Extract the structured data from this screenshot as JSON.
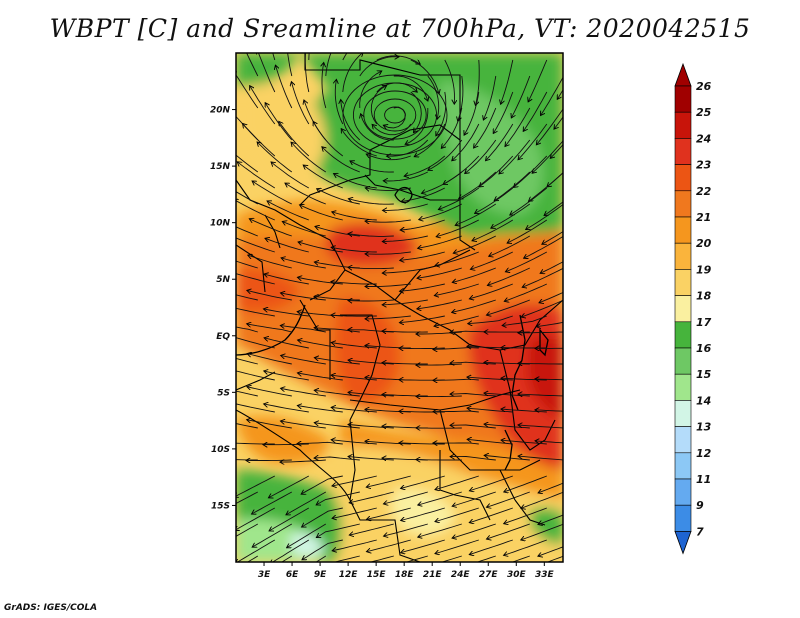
{
  "title": "WBPT [C] and Sreamline at 700hPa, VT: 2020042515",
  "footer": "GrADS: IGES/COLA",
  "chart_data": {
    "type": "heatmap",
    "title": "WBPT [C] and Sreamline at 700hPa, VT: 2020042515",
    "x_ticks": [
      "3E",
      "6E",
      "9E",
      "12E",
      "15E",
      "18E",
      "21E",
      "24E",
      "27E",
      "30E",
      "33E"
    ],
    "x_tick_values": [
      3,
      6,
      9,
      12,
      15,
      18,
      21,
      24,
      27,
      30,
      33
    ],
    "y_ticks": [
      "20N",
      "15N",
      "10N",
      "5N",
      "EQ",
      "5S",
      "10S",
      "15S"
    ],
    "y_tick_values": [
      20,
      15,
      10,
      5,
      0,
      -5,
      -10,
      -15
    ],
    "xlim": [
      0,
      35
    ],
    "ylim": [
      -20,
      25
    ],
    "colorbar": {
      "labels": [
        "26",
        "25",
        "24",
        "23",
        "22",
        "21",
        "20",
        "19",
        "18",
        "17",
        "16",
        "15",
        "14",
        "13",
        "12",
        "11",
        "9",
        "7"
      ],
      "colors": [
        "#a00000",
        "#c8140a",
        "#e0321e",
        "#ec5514",
        "#f0781e",
        "#f5961e",
        "#fab43c",
        "#fad264",
        "#faf0a0",
        "#46b43c",
        "#6ec864",
        "#a0e68c",
        "#d2f5e6",
        "#b4dcfa",
        "#8cc8f5",
        "#64aaf0",
        "#3c8ce6",
        "#1e64d2"
      ],
      "top_color": "#a00000",
      "bottom_color": "#1e64d2"
    },
    "regions": [
      {
        "name": "northern-green",
        "approx_value": 17,
        "lon": [
          10,
          33
        ],
        "lat": [
          12,
          24
        ]
      },
      {
        "name": "central-orange-band",
        "approx_value": 22,
        "lon": [
          0,
          33
        ],
        "lat": [
          -8,
          10
        ]
      },
      {
        "name": "east-red-core",
        "approx_value": 24,
        "lon": [
          26,
          33
        ],
        "lat": [
          -12,
          2
        ]
      },
      {
        "name": "southern-yellow",
        "approx_value": 19,
        "lon": [
          12,
          30
        ],
        "lat": [
          -19,
          -10
        ]
      },
      {
        "name": "southwest-green",
        "approx_value": 16,
        "lon": [
          0,
          10
        ],
        "lat": [
          -19,
          -12
        ]
      }
    ]
  }
}
